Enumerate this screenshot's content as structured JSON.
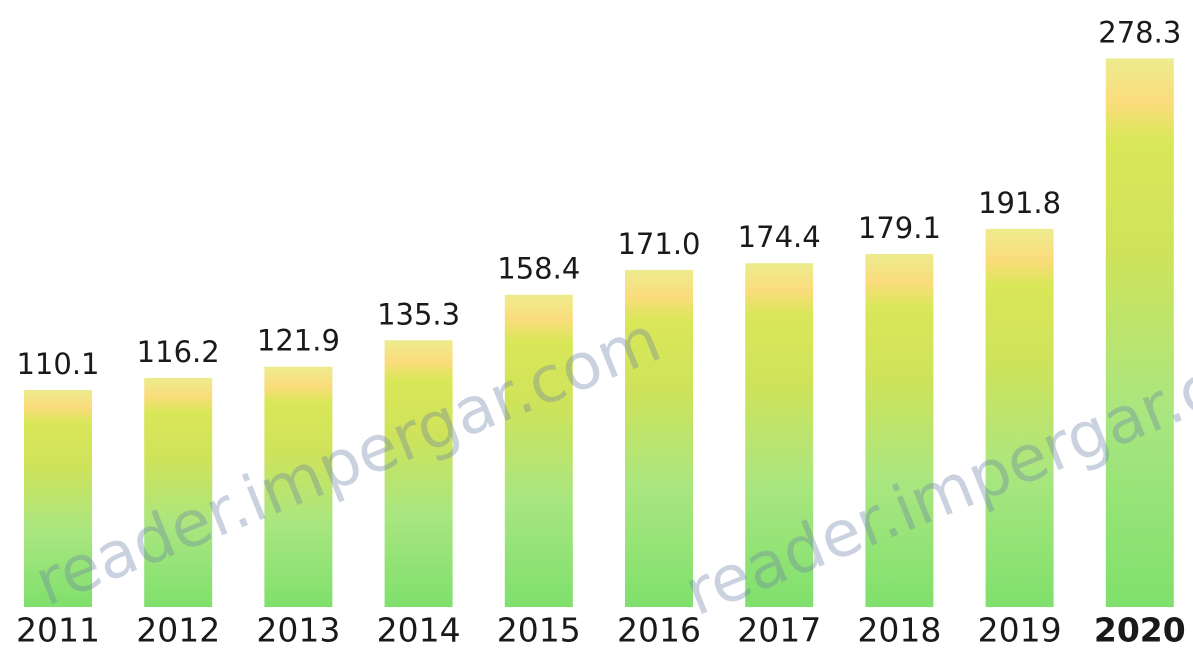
{
  "chart_data": {
    "type": "bar",
    "categories": [
      "2011",
      "2012",
      "2013",
      "2014",
      "2015",
      "2016",
      "2017",
      "2018",
      "2019",
      "2020"
    ],
    "values": [
      110.1,
      116.2,
      121.9,
      135.3,
      158.4,
      171.0,
      174.4,
      179.1,
      191.8,
      278.3
    ],
    "value_labels": [
      "110.1",
      "116.2",
      "121.9",
      "135.3",
      "158.4",
      "171.0",
      "174.4",
      "179.1",
      "191.8",
      "278.3"
    ],
    "ylim": [
      0,
      280
    ],
    "watermark": "reader.impergar.com"
  }
}
